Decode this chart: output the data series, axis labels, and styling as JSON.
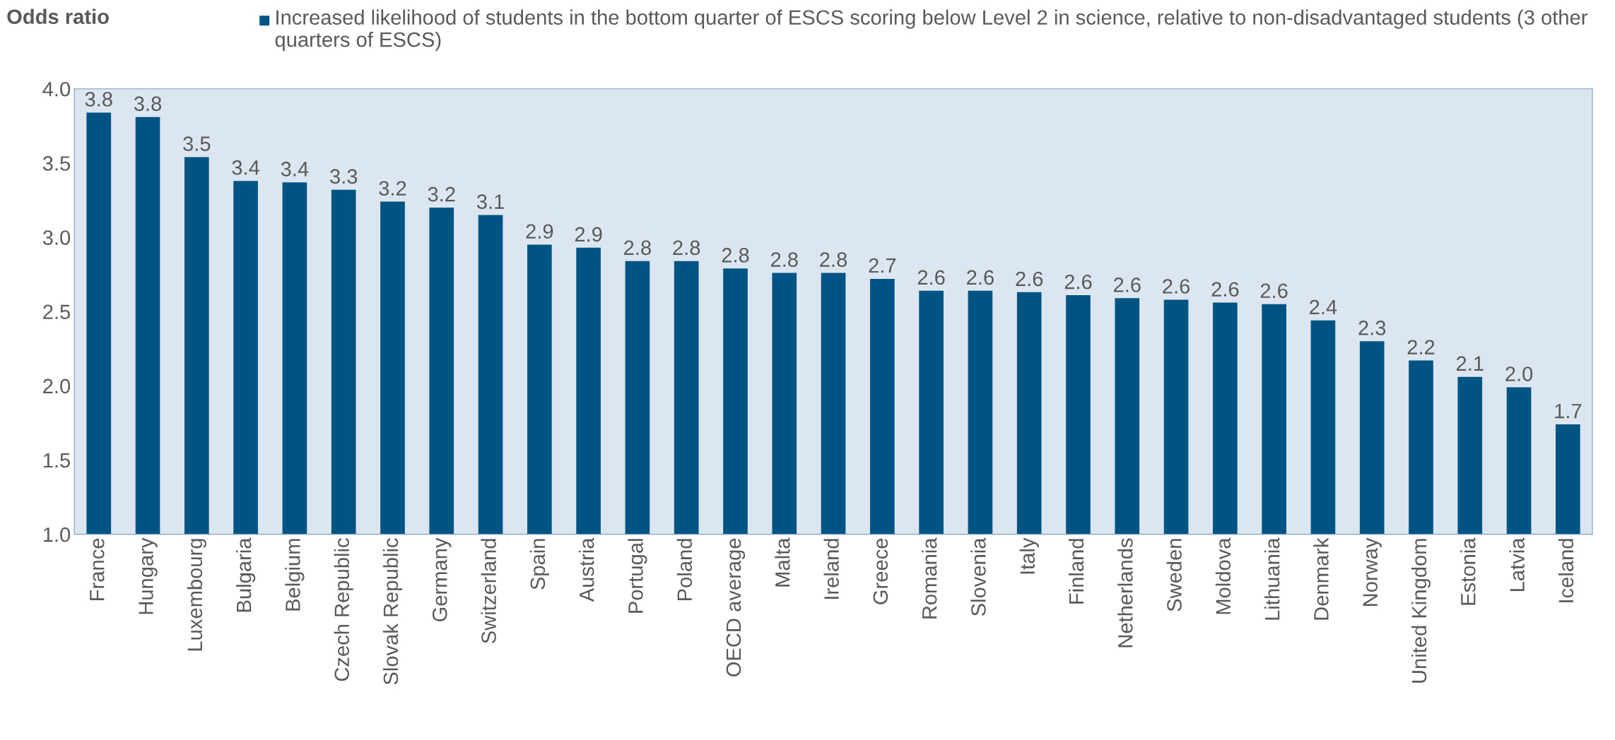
{
  "chart_data": {
    "type": "bar",
    "ylabel": "Odds ratio",
    "categories": [
      "France",
      "Hungary",
      "Luxembourg",
      "Bulgaria",
      "Belgium",
      "Czech Republic",
      "Slovak Republic",
      "Germany",
      "Switzerland",
      "Spain",
      "Austria",
      "Portugal",
      "Poland",
      "OECD average",
      "Malta",
      "Ireland",
      "Greece",
      "Romania",
      "Slovenia",
      "Italy",
      "Finland",
      "Netherlands",
      "Sweden",
      "Moldova",
      "Lithuania",
      "Denmark",
      "Norway",
      "United Kingdom",
      "Estonia",
      "Latvia",
      "Iceland"
    ],
    "series": [
      {
        "name": "Increased likelihood of students in the bottom quarter of ESCS scoring below Level 2 in science, relative to non-disadvantaged students (3 other quarters of ESCS)",
        "color": "#005483",
        "values": [
          3.84,
          3.81,
          3.54,
          3.38,
          3.37,
          3.32,
          3.24,
          3.2,
          3.15,
          2.95,
          2.93,
          2.84,
          2.84,
          2.79,
          2.76,
          2.76,
          2.72,
          2.64,
          2.64,
          2.63,
          2.61,
          2.59,
          2.58,
          2.56,
          2.55,
          2.44,
          2.3,
          2.17,
          2.06,
          1.99,
          1.74
        ],
        "value_labels": [
          "3.8",
          "3.8",
          "3.5",
          "3.4",
          "3.4",
          "3.3",
          "3.2",
          "3.2",
          "3.1",
          "2.9",
          "2.9",
          "2.8",
          "2.8",
          "2.8",
          "2.8",
          "2.8",
          "2.7",
          "2.6",
          "2.6",
          "2.6",
          "2.6",
          "2.6",
          "2.6",
          "2.6",
          "2.6",
          "2.4",
          "2.3",
          "2.2",
          "2.1",
          "2.0",
          "1.7"
        ]
      }
    ],
    "ylim": [
      1.0,
      4.0
    ],
    "yticks": [
      {
        "value": 1.0,
        "label": "1.0"
      },
      {
        "value": 1.5,
        "label": "1.5"
      },
      {
        "value": 2.0,
        "label": "2.0"
      },
      {
        "value": 2.5,
        "label": "2.5"
      },
      {
        "value": 3.0,
        "label": "3.0"
      },
      {
        "value": 3.5,
        "label": "3.5"
      },
      {
        "value": 4.0,
        "label": "4.0"
      }
    ],
    "grid": false,
    "legend": "top"
  }
}
